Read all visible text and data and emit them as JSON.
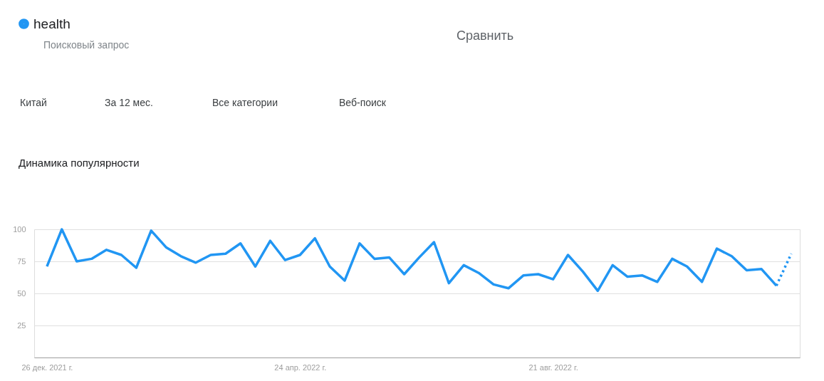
{
  "chart_data": {
    "type": "line",
    "title": "Динамика популярности",
    "x": [
      "2021-12-26",
      "2022-01-02",
      "2022-01-09",
      "2022-01-16",
      "2022-01-23",
      "2022-01-30",
      "2022-02-06",
      "2022-02-13",
      "2022-02-20",
      "2022-02-27",
      "2022-03-06",
      "2022-03-13",
      "2022-03-20",
      "2022-03-27",
      "2022-04-03",
      "2022-04-10",
      "2022-04-17",
      "2022-04-24",
      "2022-05-01",
      "2022-05-08",
      "2022-05-15",
      "2022-05-22",
      "2022-05-29",
      "2022-06-05",
      "2022-06-12",
      "2022-06-19",
      "2022-06-26",
      "2022-07-03",
      "2022-07-10",
      "2022-07-17",
      "2022-07-24",
      "2022-07-31",
      "2022-08-07",
      "2022-08-14",
      "2022-08-21",
      "2022-08-28",
      "2022-09-04",
      "2022-09-11",
      "2022-09-18",
      "2022-09-25",
      "2022-10-02",
      "2022-10-09",
      "2022-10-16",
      "2022-10-23",
      "2022-10-30",
      "2022-11-06",
      "2022-11-13",
      "2022-11-20",
      "2022-11-27",
      "2022-12-04",
      "2022-12-11"
    ],
    "series": [
      {
        "name": "health",
        "color": "#2196f3",
        "line_style": "solid",
        "values": [
          71,
          100,
          75,
          77,
          84,
          80,
          70,
          99,
          86,
          79,
          74,
          80,
          81,
          89,
          71,
          91,
          76,
          80,
          93,
          71,
          60,
          89,
          77,
          78,
          65,
          78,
          90,
          58,
          72,
          66,
          57,
          54,
          64,
          65,
          61,
          80,
          67,
          52,
          72,
          63,
          64,
          59,
          77,
          71,
          59,
          85,
          79,
          68,
          69,
          56,
          null
        ]
      },
      {
        "color": "#2196f3",
        "line_style": "dotted",
        "values": [
          null,
          null,
          null,
          null,
          null,
          null,
          null,
          null,
          null,
          null,
          null,
          null,
          null,
          null,
          null,
          null,
          null,
          null,
          null,
          null,
          null,
          null,
          null,
          null,
          null,
          null,
          null,
          null,
          null,
          null,
          null,
          null,
          null,
          null,
          null,
          null,
          null,
          null,
          null,
          null,
          null,
          null,
          null,
          null,
          null,
          null,
          null,
          null,
          null,
          56,
          81
        ]
      }
    ],
    "xlim": [
      "2021-12-20",
      "2022-12-15"
    ],
    "xticks": [
      {
        "value": "2021-12-26",
        "label": "26 дек. 2021 г."
      },
      {
        "value": "2022-04-24",
        "label": "24 апр. 2022 г."
      },
      {
        "value": "2022-08-21",
        "label": "21 авг. 2022 г."
      }
    ],
    "ylim": [
      0,
      100
    ],
    "yticks": [
      25,
      50,
      75,
      100
    ],
    "grid": "y",
    "legend": "top left",
    "marker": "none",
    "annotations": [
      "Поисковый запрос",
      "Сравнить",
      "Китай",
      "За 12 мес.",
      "Все категории",
      "Веб-поиск"
    ]
  }
}
